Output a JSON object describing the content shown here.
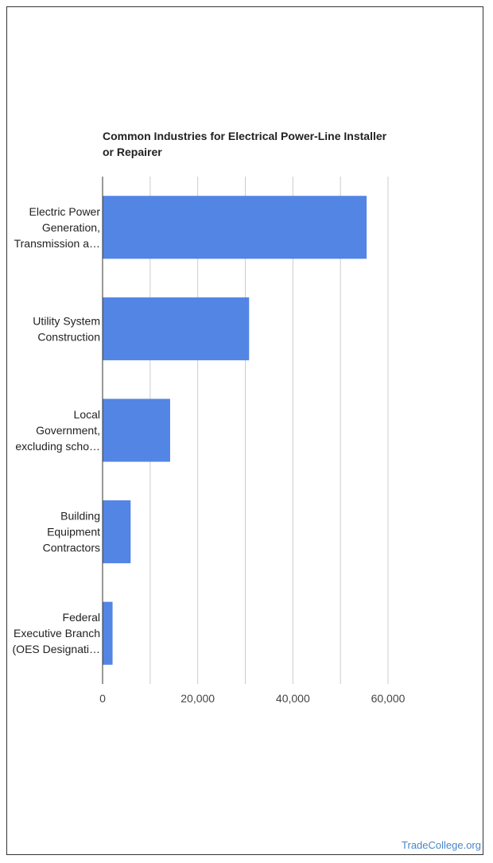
{
  "chart_data": {
    "type": "bar",
    "orientation": "horizontal",
    "title_lines": [
      "Common Industries for Electrical Power-Line Installer",
      "or Repairer"
    ],
    "categories": [
      [
        "Electric Power",
        "Generation,",
        "Transmission a…"
      ],
      [
        "Utility System",
        "Construction"
      ],
      [
        "Local",
        "Government,",
        "excluding scho…"
      ],
      [
        "Building",
        "Equipment",
        "Contractors"
      ],
      [
        "Federal",
        "Executive Branch",
        "(OES Designati…"
      ]
    ],
    "values": [
      55500,
      30800,
      14200,
      5900,
      2100
    ],
    "xlim": [
      0,
      60000
    ],
    "xticks": [
      0,
      20000,
      40000,
      60000
    ],
    "xtick_labels": [
      "0",
      "20,000",
      "40,000",
      "60,000"
    ],
    "grid": true,
    "bar_color": "#5385e4"
  },
  "watermark": "TradeCollege.org"
}
